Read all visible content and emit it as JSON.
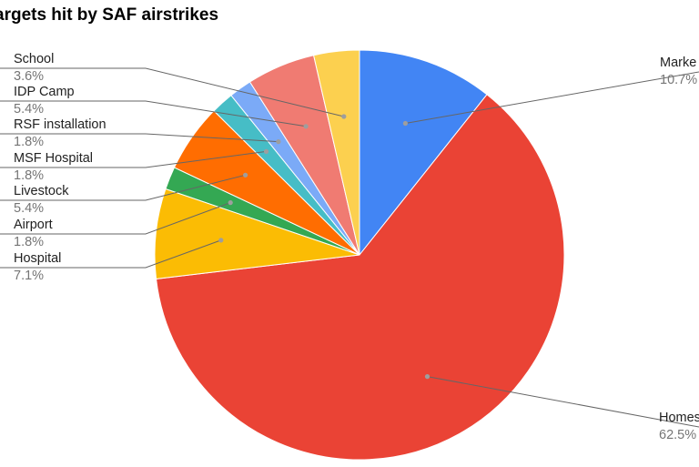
{
  "chart_data": {
    "type": "pie",
    "title": "argets hit by SAF airstrikes",
    "slices": [
      {
        "label": "Marke",
        "pct_label": "10.7%",
        "value": 10.7,
        "color": "#4285f4"
      },
      {
        "label": "Homes",
        "pct_label": "62.5%",
        "value": 62.5,
        "color": "#ea4335"
      },
      {
        "label": "Hospital",
        "pct_label": "7.1%",
        "value": 7.1,
        "color": "#fbbc04"
      },
      {
        "label": "Airport",
        "pct_label": "1.8%",
        "value": 1.8,
        "color": "#34a853"
      },
      {
        "label": "Livestock",
        "pct_label": "5.4%",
        "value": 5.4,
        "color": "#ff6d01"
      },
      {
        "label": "MSF Hospital",
        "pct_label": "1.8%",
        "value": 1.8,
        "color": "#46bdc6"
      },
      {
        "label": "RSF installation",
        "pct_label": "1.8%",
        "value": 1.8,
        "color": "#7baaf7"
      },
      {
        "label": "IDP Camp",
        "pct_label": "5.4%",
        "value": 5.4,
        "color": "#f07b72"
      },
      {
        "label": "School",
        "pct_label": "3.6%",
        "value": 3.6,
        "color": "#fcd04f"
      }
    ],
    "legend": "leader-line labels"
  }
}
